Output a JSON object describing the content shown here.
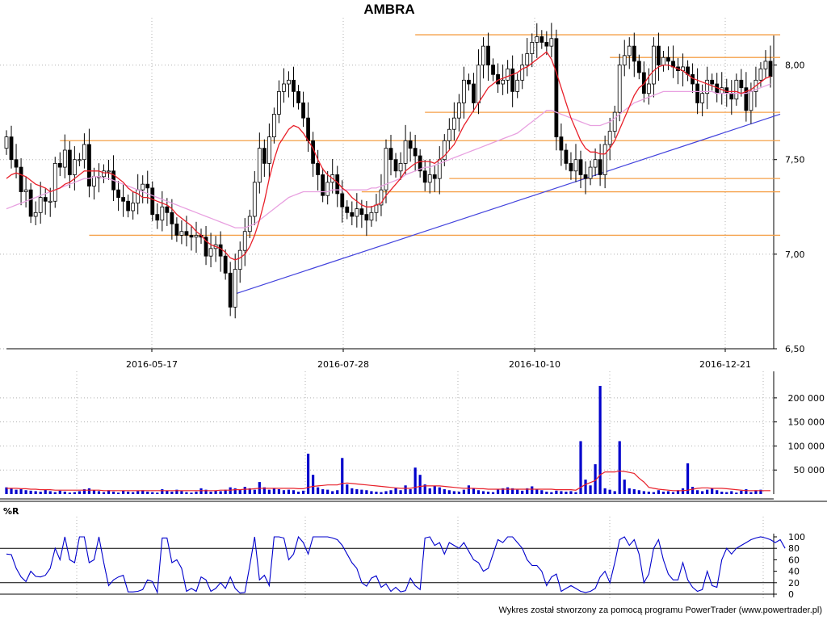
{
  "title": "AMBRA",
  "footer": "Wykres został stworzony za pomocą programu PowerTrader (www.powertrader.pl)",
  "colors": {
    "candle": "#000000",
    "ma_fast": "#e8202a",
    "ma_slow": "#e8a0e0",
    "trendline": "#4444dd",
    "support_resistance": "#f5a048",
    "volume_bar": "#0000cc",
    "volume_ma": "#e8202a",
    "williams_r": "#0000cc",
    "grid": "#b0b0b0"
  },
  "chart_data": [
    {
      "type": "candlestick",
      "title": "AMBRA",
      "x_tick_labels": [
        "2016-05-17",
        "2016-07-28",
        "2016-10-10",
        "2016-12-21"
      ],
      "y_tick_labels": [
        "8,00",
        "7,50",
        "7,00",
        "6,50"
      ],
      "ylim": [
        6.5,
        8.25
      ],
      "grid": true,
      "close_series": [
        7.62,
        7.5,
        7.46,
        7.33,
        7.34,
        7.2,
        7.22,
        7.3,
        7.28,
        7.28,
        7.48,
        7.46,
        7.55,
        7.42,
        7.5,
        7.5,
        7.58,
        7.36,
        7.41,
        7.41,
        7.44,
        7.44,
        7.34,
        7.3,
        7.28,
        7.23,
        7.27,
        7.34,
        7.37,
        7.35,
        7.21,
        7.18,
        7.25,
        7.22,
        7.16,
        7.1,
        7.12,
        7.1,
        7.09,
        7.1,
        7.09,
        6.99,
        7.03,
        7.05,
        6.99,
        6.9,
        6.72,
        6.92,
        7.02,
        7.12,
        7.2,
        7.38,
        7.56,
        7.48,
        7.62,
        7.74,
        7.86,
        7.9,
        7.92,
        7.86,
        7.8,
        7.72,
        7.6,
        7.48,
        7.42,
        7.31,
        7.38,
        7.42,
        7.32,
        7.25,
        7.22,
        7.2,
        7.24,
        7.21,
        7.18,
        7.22,
        7.26,
        7.34,
        7.56,
        7.5,
        7.44,
        7.48,
        7.6,
        7.56,
        7.52,
        7.44,
        7.38,
        7.42,
        7.4,
        7.5,
        7.6,
        7.66,
        7.72,
        7.8,
        7.92,
        7.9,
        7.8,
        8.0,
        8.1,
        8.0,
        7.95,
        7.9,
        7.92,
        7.98,
        7.86,
        7.92,
        8.0,
        8.06,
        8.12,
        8.15,
        8.12,
        8.1,
        8.14,
        7.62,
        7.55,
        7.48,
        7.44,
        7.5,
        7.42,
        7.4,
        7.46,
        7.5,
        7.42,
        7.58,
        7.65,
        7.75,
        8.0,
        8.05,
        8.1,
        8.02,
        7.96,
        7.85,
        7.9,
        8.1,
        8.0,
        8.04,
        8.02,
        7.99,
        7.97,
        7.99,
        7.95,
        7.9,
        7.8,
        7.85,
        7.92,
        7.9,
        7.85,
        7.88,
        7.85,
        7.82,
        7.92,
        7.88,
        7.76,
        7.86,
        7.92,
        7.98,
        8.02,
        7.94
      ],
      "ma_fast_series": [
        7.4,
        7.42,
        7.43,
        7.42,
        7.41,
        7.39,
        7.37,
        7.36,
        7.35,
        7.33,
        7.34,
        7.35,
        7.37,
        7.38,
        7.4,
        7.42,
        7.44,
        7.44,
        7.44,
        7.44,
        7.43,
        7.43,
        7.42,
        7.4,
        7.38,
        7.35,
        7.33,
        7.32,
        7.3,
        7.3,
        7.29,
        7.28,
        7.27,
        7.26,
        7.24,
        7.21,
        7.19,
        7.17,
        7.15,
        7.12,
        7.1,
        7.07,
        7.05,
        7.04,
        7.03,
        7.01,
        6.98,
        6.97,
        6.98,
        7.0,
        7.04,
        7.1,
        7.18,
        7.28,
        7.4,
        7.5,
        7.58,
        7.62,
        7.66,
        7.68,
        7.67,
        7.64,
        7.6,
        7.56,
        7.5,
        7.45,
        7.42,
        7.4,
        7.38,
        7.35,
        7.33,
        7.3,
        7.28,
        7.26,
        7.25,
        7.25,
        7.26,
        7.27,
        7.31,
        7.34,
        7.37,
        7.4,
        7.44,
        7.46,
        7.48,
        7.49,
        7.49,
        7.49,
        7.48,
        7.5,
        7.52,
        7.55,
        7.58,
        7.63,
        7.68,
        7.72,
        7.76,
        7.8,
        7.84,
        7.88,
        7.9,
        7.92,
        7.93,
        7.94,
        7.95,
        7.96,
        7.98,
        7.99,
        8.01,
        8.03,
        8.05,
        8.07,
        8.03,
        7.96,
        7.88,
        7.8,
        7.72,
        7.66,
        7.6,
        7.56,
        7.54,
        7.54,
        7.53,
        7.53,
        7.56,
        7.6,
        7.66,
        7.72,
        7.78,
        7.84,
        7.88,
        7.9,
        7.94,
        7.97,
        7.99,
        8.0,
        8.0,
        7.99,
        7.98,
        7.97,
        7.95,
        7.93,
        7.92,
        7.91,
        7.9,
        7.89,
        7.88,
        7.87,
        7.86,
        7.86,
        7.86,
        7.85,
        7.86,
        7.87,
        7.89,
        7.91,
        7.93,
        7.94
      ],
      "ma_slow_series": [
        7.24,
        7.25,
        7.26,
        7.27,
        7.28,
        7.29,
        7.3,
        7.31,
        7.32,
        7.33,
        7.34,
        7.35,
        7.36,
        7.37,
        7.38,
        7.39,
        7.4,
        7.4,
        7.41,
        7.41,
        7.4,
        7.4,
        7.39,
        7.38,
        7.37,
        7.36,
        7.35,
        7.34,
        7.33,
        7.32,
        7.31,
        7.3,
        7.29,
        7.28,
        7.27,
        7.26,
        7.25,
        7.24,
        7.23,
        7.22,
        7.21,
        7.2,
        7.19,
        7.18,
        7.17,
        7.16,
        7.15,
        7.14,
        7.14,
        7.14,
        7.15,
        7.16,
        7.18,
        7.2,
        7.22,
        7.24,
        7.26,
        7.28,
        7.3,
        7.31,
        7.32,
        7.33,
        7.33,
        7.33,
        7.33,
        7.33,
        7.33,
        7.34,
        7.34,
        7.34,
        7.34,
        7.34,
        7.34,
        7.34,
        7.34,
        7.35,
        7.35,
        7.36,
        7.37,
        7.38,
        7.39,
        7.4,
        7.42,
        7.43,
        7.44,
        7.45,
        7.46,
        7.46,
        7.47,
        7.48,
        7.49,
        7.5,
        7.51,
        7.52,
        7.53,
        7.54,
        7.55,
        7.56,
        7.57,
        7.58,
        7.59,
        7.6,
        7.61,
        7.62,
        7.63,
        7.64,
        7.66,
        7.68,
        7.7,
        7.72,
        7.74,
        7.76,
        7.76,
        7.75,
        7.74,
        7.73,
        7.72,
        7.71,
        7.7,
        7.69,
        7.68,
        7.68,
        7.68,
        7.69,
        7.7,
        7.72,
        7.74,
        7.76,
        7.78,
        7.8,
        7.81,
        7.82,
        7.83,
        7.84,
        7.85,
        7.86,
        7.86,
        7.86,
        7.86,
        7.86,
        7.86,
        7.86,
        7.86,
        7.86,
        7.86,
        7.86,
        7.85,
        7.85,
        7.85,
        7.85,
        7.85,
        7.85,
        7.85,
        7.86,
        7.87,
        7.88,
        7.89,
        7.9
      ],
      "horizontal_lines": [
        {
          "y": 8.16,
          "x_start_index": 84,
          "x_end_index": 159
        },
        {
          "y": 8.04,
          "x_start_index": 124,
          "x_end_index": 159
        },
        {
          "y": 7.75,
          "x_start_index": 86,
          "x_end_index": 159
        },
        {
          "y": 7.6,
          "x_start_index": 11,
          "x_end_index": 159
        },
        {
          "y": 7.4,
          "x_start_index": 91,
          "x_end_index": 159
        },
        {
          "y": 7.33,
          "x_start_index": 73,
          "x_end_index": 159
        },
        {
          "y": 7.1,
          "x_start_index": 17,
          "x_end_index": 159
        }
      ],
      "trendline": {
        "from": {
          "index": 47,
          "value": 6.79
        },
        "to": {
          "index": 159,
          "value": 7.74
        }
      }
    },
    {
      "type": "bar",
      "title": "",
      "y_tick_labels": [
        "200 000",
        "150 000",
        "100 000",
        "50 000"
      ],
      "ylim": [
        0,
        230000
      ],
      "grid": true,
      "values": [
        14000,
        11000,
        9000,
        10000,
        8000,
        7000,
        6000,
        5000,
        9000,
        6000,
        4000,
        7000,
        5000,
        3000,
        4000,
        6000,
        10000,
        12000,
        8000,
        6000,
        4000,
        8000,
        5000,
        3000,
        7000,
        5000,
        4000,
        6000,
        8000,
        5000,
        4000,
        3000,
        10000,
        7000,
        5000,
        9000,
        6000,
        4000,
        3000,
        5000,
        12000,
        9000,
        5000,
        7000,
        6000,
        9000,
        14000,
        12000,
        10000,
        15000,
        12000,
        9000,
        25000,
        14000,
        9000,
        12000,
        10000,
        8000,
        9000,
        8000,
        5000,
        7000,
        84000,
        40000,
        14000,
        10000,
        9000,
        6000,
        8000,
        75000,
        20000,
        12000,
        10000,
        9000,
        8000,
        6000,
        5000,
        4000,
        6000,
        8000,
        12000,
        8000,
        18000,
        10000,
        55000,
        40000,
        20000,
        12000,
        16000,
        14000,
        10000,
        8000,
        6000,
        5000,
        9000,
        18000,
        12000,
        8000,
        6000,
        5000,
        4000,
        10000,
        12000,
        14000,
        12000,
        9000,
        7000,
        12000,
        16000,
        10000,
        8000,
        5000,
        4000,
        7000,
        6000,
        5000,
        6000,
        4000,
        110000,
        30000,
        18000,
        62000,
        225000,
        12000,
        9000,
        6000,
        110000,
        30000,
        12000,
        10000,
        8000,
        6000,
        5000,
        4000,
        8000,
        5000,
        6000,
        4000,
        8000,
        12000,
        64000,
        15000,
        8000,
        6000,
        9000,
        12000,
        8000,
        5000,
        4000,
        6000,
        3000,
        7000,
        10000,
        4000,
        8000,
        9000
      ],
      "ma_series": [
        12000,
        12000,
        12000,
        11000,
        11000,
        10000,
        10000,
        9000,
        9000,
        9000,
        8000,
        8000,
        8000,
        8000,
        8000,
        8000,
        8000,
        8000,
        8000,
        8000,
        7000,
        7000,
        7000,
        7000,
        7000,
        7000,
        7000,
        7000,
        7000,
        7000,
        7000,
        7000,
        7000,
        7000,
        7000,
        7000,
        7000,
        7000,
        7000,
        7000,
        7000,
        7000,
        7000,
        7000,
        8000,
        8000,
        8000,
        9000,
        9000,
        10000,
        10000,
        11000,
        12000,
        12000,
        12000,
        12000,
        12000,
        12000,
        12000,
        12000,
        11000,
        11000,
        14000,
        16000,
        17000,
        18000,
        19000,
        19000,
        19000,
        22000,
        23000,
        22000,
        21000,
        20000,
        19000,
        18000,
        17000,
        16000,
        15000,
        14000,
        13000,
        12000,
        12000,
        12000,
        14000,
        16000,
        17000,
        17000,
        17000,
        17000,
        16000,
        15000,
        14000,
        13000,
        12000,
        12000,
        12000,
        11000,
        11000,
        10000,
        10000,
        10000,
        10000,
        10000,
        10000,
        10000,
        10000,
        10000,
        10000,
        10000,
        10000,
        10000,
        10000,
        9000,
        9000,
        9000,
        9000,
        8000,
        14000,
        20000,
        24000,
        28000,
        40000,
        46000,
        46000,
        46000,
        48000,
        47000,
        45000,
        43000,
        33000,
        25000,
        14000,
        12000,
        10000,
        9000,
        8000,
        7000,
        7000,
        7000,
        8000,
        10000,
        12000,
        13000,
        13000,
        12000,
        12000,
        12000,
        11000,
        10000,
        9000,
        8000,
        7000,
        7000,
        7000,
        7000,
        7000,
        7000
      ]
    },
    {
      "type": "line",
      "title": "%R",
      "y_tick_labels": [
        "100",
        "80",
        "60",
        "40",
        "20",
        "0"
      ],
      "ylim": [
        0,
        100
      ],
      "reference_lines": [
        80,
        20
      ],
      "values": [
        70,
        69,
        45,
        30,
        22,
        40,
        31,
        30,
        33,
        45,
        80,
        60,
        100,
        60,
        55,
        100,
        100,
        55,
        60,
        100,
        55,
        15,
        25,
        30,
        33,
        4,
        4,
        5,
        8,
        25,
        22,
        3,
        98,
        98,
        55,
        60,
        45,
        5,
        10,
        5,
        30,
        25,
        5,
        10,
        20,
        10,
        30,
        10,
        2,
        3,
        50,
        100,
        25,
        33,
        15,
        100,
        100,
        98,
        60,
        70,
        100,
        90,
        70,
        100,
        100,
        100,
        100,
        98,
        95,
        85,
        70,
        55,
        45,
        20,
        14,
        28,
        32,
        12,
        18,
        5,
        12,
        4,
        6,
        28,
        15,
        8,
        98,
        100,
        85,
        90,
        70,
        90,
        85,
        80,
        90,
        75,
        60,
        55,
        40,
        45,
        70,
        95,
        90,
        100,
        100,
        90,
        80,
        60,
        50,
        50,
        40,
        15,
        30,
        35,
        5,
        10,
        15,
        10,
        5,
        3,
        5,
        10,
        30,
        40,
        20,
        55,
        95,
        100,
        85,
        95,
        70,
        20,
        35,
        80,
        95,
        60,
        35,
        25,
        25,
        55,
        25,
        12,
        5,
        8,
        40,
        15,
        12,
        60,
        80,
        70,
        80,
        85,
        90,
        95,
        98,
        100,
        98,
        95,
        90,
        95,
        80
      ]
    }
  ]
}
